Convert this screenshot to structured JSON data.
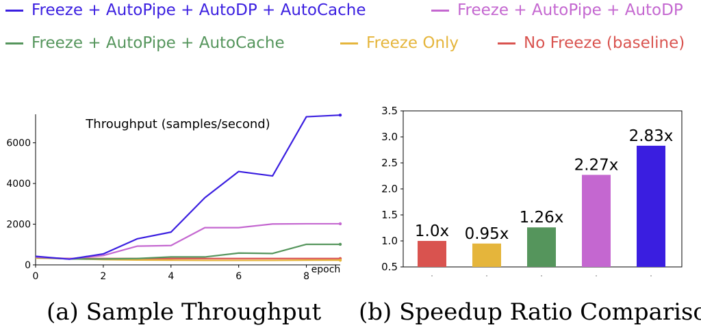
{
  "legend": [
    {
      "label": "Freeze + AutoPipe + AutoDP + AutoCache",
      "color": "#3a1ee0"
    },
    {
      "label": "Freeze + AutoPipe + AutoDP",
      "color": "#c467d0"
    },
    {
      "label": "Freeze + AutoPipe + AutoCache",
      "color": "#55955c"
    },
    {
      "label": "Freeze Only",
      "color": "#e5b53b"
    },
    {
      "label": "No Freeze (baseline)",
      "color": "#d9534f"
    }
  ],
  "captions": {
    "a": "(a) Sample Throughput",
    "b": "(b) Speedup Ratio Comparison"
  },
  "chart_data": [
    {
      "type": "line",
      "title": "Throughput (samples/second)",
      "xlabel": "epoch",
      "ylabel": "",
      "x": [
        0,
        1,
        2,
        3,
        4,
        5,
        6,
        7,
        8,
        9
      ],
      "xlim": [
        0,
        9
      ],
      "ylim": [
        0,
        7400
      ],
      "xticks": [
        "0",
        "2",
        "4",
        "6",
        "8"
      ],
      "yticks": [
        "0",
        "2000",
        "4000",
        "6000"
      ],
      "grid": false,
      "series": [
        {
          "name": "No Freeze (baseline)",
          "color": "#d9534f",
          "values": [
            350,
            310,
            310,
            310,
            310,
            310,
            310,
            310,
            310,
            310
          ]
        },
        {
          "name": "Freeze Only",
          "color": "#e5b53b",
          "values": [
            330,
            300,
            260,
            240,
            230,
            220,
            220,
            220,
            230,
            230
          ]
        },
        {
          "name": "Freeze + AutoPipe + AutoCache",
          "color": "#55955c",
          "values": [
            370,
            290,
            290,
            310,
            390,
            390,
            580,
            560,
            1010,
            1010
          ]
        },
        {
          "name": "Freeze + AutoPipe + AutoDP",
          "color": "#c467d0",
          "values": [
            380,
            300,
            460,
            920,
            950,
            1830,
            1830,
            2010,
            2020,
            2020
          ]
        },
        {
          "name": "Freeze + AutoPipe + AutoDP + AutoCache",
          "color": "#3a1ee0",
          "values": [
            420,
            280,
            540,
            1280,
            1610,
            3300,
            4590,
            4370,
            7280,
            7360
          ]
        }
      ]
    },
    {
      "type": "bar",
      "title": "",
      "xlabel": "",
      "ylabel": "",
      "ylim": [
        0.5,
        3.5
      ],
      "yticks": [
        "0.5",
        "1.0",
        "1.5",
        "2.0",
        "2.5",
        "3.0",
        "3.5"
      ],
      "categories": [
        "",
        "",
        "",
        "",
        ""
      ],
      "values": [
        1.0,
        0.95,
        1.26,
        2.27,
        2.83
      ],
      "labels": [
        "1.0x",
        "0.95x",
        "1.26x",
        "2.27x",
        "2.83x"
      ],
      "colors": [
        "#d9534f",
        "#e5b53b",
        "#55955c",
        "#c467d0",
        "#3a1ee0"
      ],
      "grid": false
    }
  ]
}
